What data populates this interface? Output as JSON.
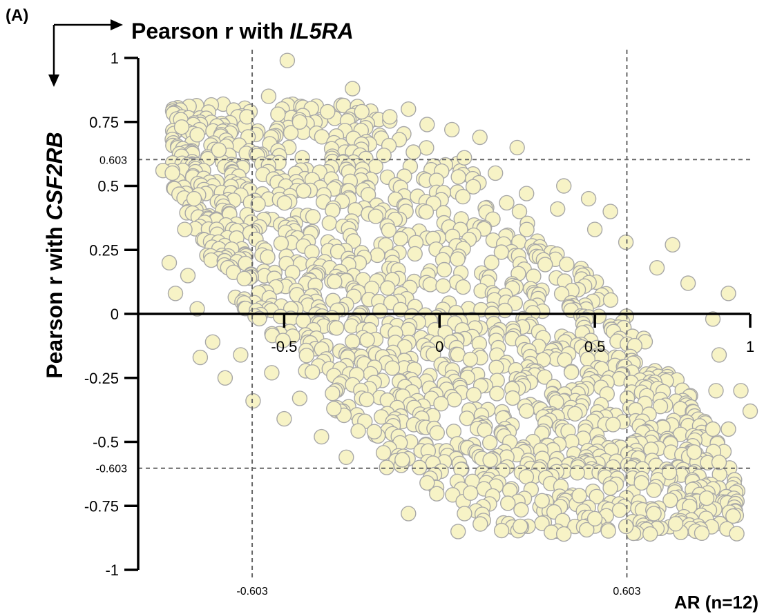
{
  "panel_label": "(A)",
  "chart_data": {
    "type": "scatter",
    "x_title_prefix": "Pearson r with ",
    "x_title_gene": "IL5RA",
    "y_title_prefix": "Pearson r with ",
    "y_title_gene": "CSF2RB",
    "group_label": "AR (n=12)",
    "xlim": [
      -0.97,
      1.0
    ],
    "ylim": [
      -1.0,
      1.0
    ],
    "x_ticks": [
      {
        "value": -0.5,
        "label": "-0.5"
      },
      {
        "value": 0,
        "label": "0"
      },
      {
        "value": 0.5,
        "label": "0.5"
      },
      {
        "value": 1,
        "label": "1"
      }
    ],
    "y_ticks": [
      {
        "value": 1,
        "label": "1"
      },
      {
        "value": 0.75,
        "label": "0.75"
      },
      {
        "value": 0.5,
        "label": "0.5"
      },
      {
        "value": 0.25,
        "label": "0.25"
      },
      {
        "value": 0,
        "label": "0"
      },
      {
        "value": -0.25,
        "label": "-0.25"
      },
      {
        "value": -0.5,
        "label": "-0.5"
      },
      {
        "value": -0.75,
        "label": "-0.75"
      },
      {
        "value": -1,
        "label": "-1"
      }
    ],
    "thresholds": {
      "x": [
        -0.603,
        0.603
      ],
      "y": [
        0.603,
        -0.603
      ],
      "x_labels": [
        "-0.603",
        "0.603"
      ],
      "y_labels": [
        "0.603",
        "-0.603"
      ]
    },
    "point_color": "#f7f3c6",
    "point_edge_color": "#a8a8a8",
    "points": [
      [
        -0.49,
        0.99
      ],
      [
        -0.28,
        0.88
      ],
      [
        -0.1,
        0.8
      ],
      [
        -0.55,
        0.85
      ],
      [
        -0.62,
        0.77
      ],
      [
        -0.83,
        0.73
      ],
      [
        -0.78,
        0.7
      ],
      [
        -0.89,
        0.56
      ],
      [
        -0.86,
        0.55
      ],
      [
        -0.87,
        0.2
      ],
      [
        -0.85,
        0.08
      ],
      [
        -0.77,
        -0.17
      ],
      [
        -0.69,
        -0.25
      ],
      [
        -0.6,
        -0.34
      ],
      [
        -0.5,
        -0.41
      ],
      [
        -0.38,
        -0.48
      ],
      [
        -0.3,
        -0.56
      ],
      [
        -0.17,
        -0.6
      ],
      [
        -0.1,
        -0.78
      ],
      [
        0.06,
        -0.85
      ],
      [
        0.26,
        -0.83
      ],
      [
        0.4,
        -0.86
      ],
      [
        0.5,
        -0.8
      ],
      [
        0.6,
        -0.83
      ],
      [
        0.69,
        -0.78
      ],
      [
        0.76,
        -0.82
      ],
      [
        0.86,
        -0.72
      ],
      [
        0.9,
        -0.58
      ],
      [
        0.93,
        -0.45
      ],
      [
        0.97,
        -0.3
      ],
      [
        1.0,
        -0.38
      ],
      [
        0.93,
        0.08
      ],
      [
        0.75,
        0.27
      ],
      [
        0.55,
        0.4
      ],
      [
        0.48,
        0.45
      ],
      [
        0.4,
        0.5
      ],
      [
        0.25,
        0.65
      ],
      [
        0.13,
        0.69
      ],
      [
        0.04,
        0.72
      ],
      [
        -0.04,
        0.74
      ],
      [
        -0.16,
        0.77
      ],
      [
        -0.25,
        0.79
      ],
      [
        -0.36,
        0.79
      ],
      [
        -0.45,
        0.75
      ],
      [
        -0.52,
        0.78
      ],
      [
        -0.71,
        0.64
      ],
      [
        -0.79,
        0.45
      ],
      [
        -0.82,
        0.33
      ],
      [
        -0.81,
        0.15
      ],
      [
        -0.78,
        0.02
      ],
      [
        -0.73,
        -0.11
      ],
      [
        -0.64,
        -0.16
      ],
      [
        -0.54,
        -0.23
      ],
      [
        -0.45,
        -0.33
      ],
      [
        -0.34,
        -0.37
      ],
      [
        -0.21,
        -0.46
      ],
      [
        -0.12,
        -0.57
      ],
      [
        -0.04,
        -0.66
      ],
      [
        0.1,
        -0.7
      ],
      [
        0.22,
        -0.74
      ],
      [
        0.33,
        -0.73
      ],
      [
        0.45,
        -0.71
      ],
      [
        0.55,
        -0.68
      ],
      [
        0.65,
        -0.66
      ],
      [
        0.74,
        -0.62
      ],
      [
        0.82,
        -0.54
      ],
      [
        0.88,
        -0.45
      ],
      [
        0.89,
        -0.3
      ],
      [
        0.9,
        -0.16
      ],
      [
        0.88,
        -0.02
      ],
      [
        0.8,
        0.12
      ],
      [
        0.7,
        0.18
      ],
      [
        0.6,
        0.28
      ],
      [
        0.5,
        0.33
      ],
      [
        0.38,
        0.41
      ],
      [
        0.28,
        0.47
      ],
      [
        0.18,
        0.55
      ],
      [
        0.08,
        0.61
      ]
    ]
  }
}
